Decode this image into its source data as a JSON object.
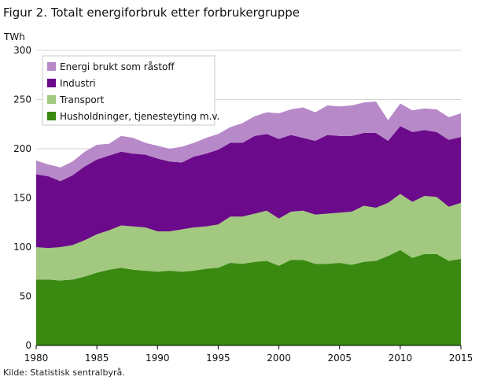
{
  "title": "Figur 2. Totalt energiforbruk etter forbrukergruppe",
  "source": "Kilde: Statistisk sentralbyrå.",
  "chart_data": {
    "type": "area",
    "stacked": true,
    "ylabel": "TWh",
    "xlabel": "",
    "xlim": [
      1980,
      2015
    ],
    "ylim": [
      0,
      300
    ],
    "y_ticks": [
      0,
      50,
      100,
      150,
      200,
      250,
      300
    ],
    "x_ticks": [
      1980,
      1985,
      1990,
      1995,
      2000,
      2005,
      2010,
      2015
    ],
    "grid": true,
    "legend_position": "top-left",
    "x": [
      1980,
      1981,
      1982,
      1983,
      1984,
      1985,
      1986,
      1987,
      1988,
      1989,
      1990,
      1991,
      1992,
      1993,
      1994,
      1995,
      1996,
      1997,
      1998,
      1999,
      2000,
      2001,
      2002,
      2003,
      2004,
      2005,
      2006,
      2007,
      2008,
      2009,
      2010,
      2011,
      2012,
      2013,
      2014,
      2015
    ],
    "series": [
      {
        "name": "Husholdninger, tjenesteyting m.v.",
        "color": "#3a8a12",
        "values": [
          67,
          67,
          66,
          67,
          70,
          74,
          77,
          79,
          77,
          76,
          75,
          76,
          75,
          76,
          78,
          79,
          84,
          83,
          85,
          86,
          81,
          87,
          87,
          83,
          83,
          84,
          82,
          85,
          86,
          91,
          97,
          89,
          93,
          93,
          86,
          88
        ]
      },
      {
        "name": "Transport",
        "color": "#a2c97f",
        "values": [
          33,
          32,
          34,
          35,
          37,
          39,
          40,
          43,
          44,
          44,
          41,
          40,
          43,
          44,
          43,
          44,
          47,
          48,
          49,
          51,
          48,
          49,
          50,
          50,
          51,
          51,
          54,
          57,
          54,
          54,
          57,
          57,
          59,
          58,
          55,
          57
        ]
      },
      {
        "name": "Industri",
        "color": "#6b0a8a",
        "values": [
          74,
          73,
          67,
          71,
          75,
          76,
          76,
          75,
          74,
          74,
          74,
          71,
          68,
          72,
          74,
          76,
          75,
          75,
          79,
          78,
          81,
          78,
          74,
          75,
          80,
          78,
          77,
          74,
          76,
          63,
          69,
          71,
          67,
          66,
          68,
          67
        ]
      },
      {
        "name": "Energi brukt som råstoff",
        "color": "#b789c9",
        "values": [
          14,
          12,
          14,
          14,
          15,
          15,
          12,
          16,
          16,
          12,
          13,
          13,
          16,
          14,
          16,
          16,
          16,
          20,
          20,
          22,
          26,
          26,
          31,
          29,
          30,
          30,
          31,
          31,
          32,
          21,
          23,
          22,
          22,
          23,
          23,
          24
        ]
      }
    ]
  }
}
